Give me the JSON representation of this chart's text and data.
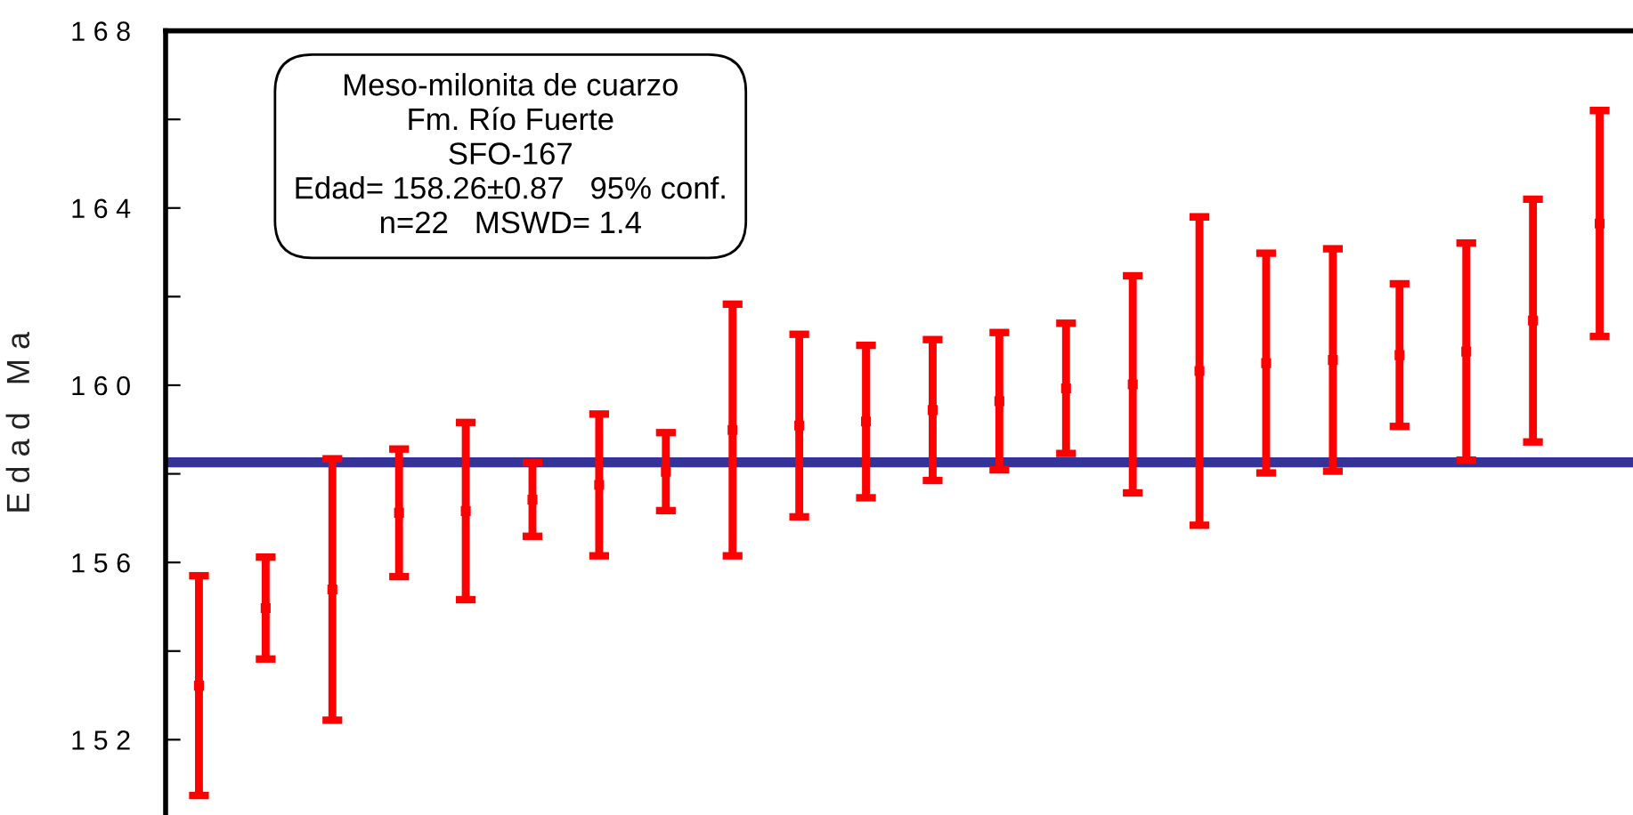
{
  "chart_data": {
    "type": "scatter",
    "ylabel": "E d a d   M a",
    "categories": [
      null,
      null,
      null,
      null,
      null,
      null,
      null,
      null,
      null,
      null,
      null,
      null,
      null,
      null,
      null,
      null,
      null,
      null,
      null,
      null,
      null,
      null
    ],
    "series": [
      {
        "color": "#ff0000",
        "values": [
          153.22,
          154.97,
          155.39,
          157.12,
          157.16,
          157.42,
          157.75,
          158.05,
          158.99,
          159.09,
          159.18,
          159.44,
          159.64,
          159.93,
          160.02,
          160.32,
          160.5,
          160.57,
          160.68,
          160.76,
          161.46,
          163.65
        ],
        "errors": [
          2.48,
          1.15,
          2.95,
          1.44,
          2.0,
          0.83,
          1.6,
          0.88,
          2.84,
          2.06,
          1.72,
          1.59,
          1.55,
          1.47,
          2.45,
          3.48,
          2.48,
          2.51,
          1.61,
          2.45,
          2.74,
          2.55
        ]
      }
    ],
    "marker": "square",
    "ylim": [
      150.3,
      168
    ],
    "yticks": [
      152,
      {
        "value": 154,
        "label": null
      },
      156,
      {
        "value": 158,
        "label": null
      },
      160,
      {
        "value": 162,
        "label": null
      },
      164,
      {
        "value": 166,
        "label": null
      },
      168
    ],
    "tick_labels": "y",
    "ref_lines": [
      {
        "axis": "y",
        "value": 158.26,
        "color": "#333399"
      }
    ],
    "annotations": [
      "Meso-milonita de cuarzo\nFm. Río Fuerte\nSFO-167\nEdad= 158.26±0.87   95% conf.\nn=22   MSWD= 1.4"
    ]
  }
}
